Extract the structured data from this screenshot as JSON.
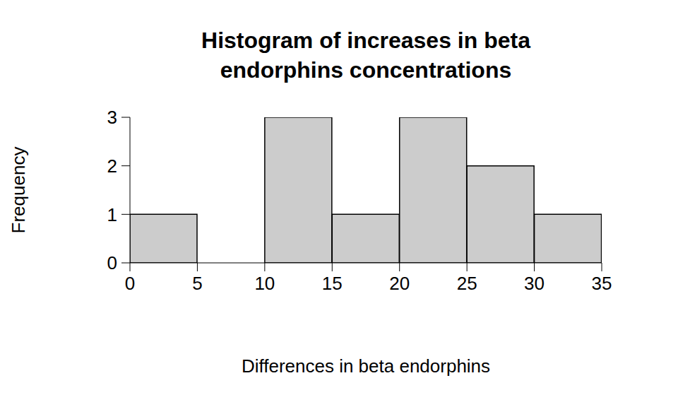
{
  "chart_data": {
    "type": "histogram",
    "title": "Histogram of increases in beta\nendorphins concentrations",
    "xlabel": "Differences in beta endorphins",
    "ylabel": "Frequency",
    "bins": [
      0,
      5,
      10,
      15,
      20,
      25,
      30,
      35
    ],
    "values": [
      1,
      0,
      3,
      1,
      3,
      2,
      1
    ],
    "color": "#cccccc",
    "xlim": [
      0,
      35
    ],
    "xticks": [
      0,
      5,
      10,
      15,
      20,
      25,
      30,
      35
    ],
    "ylim": [
      0,
      3
    ],
    "yticks": [
      0,
      1,
      2,
      3
    ],
    "grid": false
  }
}
